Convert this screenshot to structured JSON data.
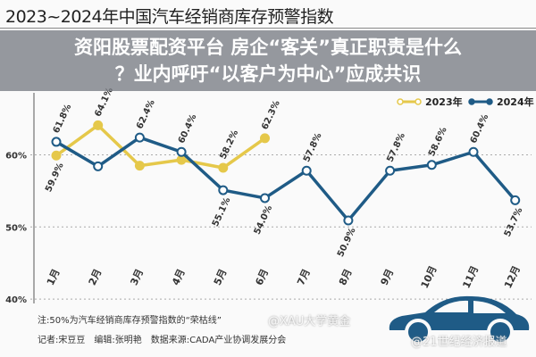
{
  "chart_data": {
    "type": "line",
    "title": "2023~2024年中国汽车经销商库存预警指数",
    "categories": [
      "1月",
      "2月",
      "3月",
      "4月",
      "5月",
      "6月",
      "7月",
      "8月",
      "9月",
      "10月",
      "11月",
      "12月"
    ],
    "series": [
      {
        "name": "2023年",
        "color": "#e5c84a",
        "values": [
          59.9,
          64.1,
          58.5,
          59.3,
          58.2,
          62.3,
          null,
          null,
          null,
          null,
          null,
          null
        ],
        "labels": [
          "59.9%",
          "64.1%",
          "",
          "",
          "58.2%",
          "62.3%",
          "",
          "",
          "",
          "",
          "",
          ""
        ]
      },
      {
        "name": "2024年",
        "color": "#1f5b86",
        "values": [
          61.8,
          58.4,
          62.4,
          60.4,
          55.1,
          54.0,
          57.8,
          50.9,
          57.8,
          58.6,
          60.4,
          53.7
        ],
        "labels": [
          "61.8%",
          "",
          "62.4%",
          "60.4%",
          "55.1%",
          "54.0%",
          "57.8%",
          "50.9%",
          "57.8%",
          "58.6%",
          "60.4%",
          "53.7%"
        ]
      }
    ],
    "yticks": [
      "60%",
      "50%",
      "40%"
    ],
    "ytick_values": [
      60,
      50,
      40
    ],
    "ylim": [
      40,
      66
    ],
    "grid": "dashed horizontal",
    "legend": "top-right"
  },
  "banner": {
    "line1": "资阳股票配资平台 房企“客关”真正职责是什么",
    "line2": "？业内呼吁“以客户为中心”应成共识"
  },
  "notes": {
    "note": "注:50%为汽车经销商库存预警指数的“荣枯线”",
    "credits": "记者:宋豆豆　编辑:张明艳　数据来源:CADA产业协调发展分会"
  },
  "watermarks": [
    "@XAU大学黄金",
    "@21世纪经济报道"
  ],
  "colors": {
    "line2023": "#e5c84a",
    "line2024": "#1f5b86",
    "car": "#1f5b86"
  }
}
